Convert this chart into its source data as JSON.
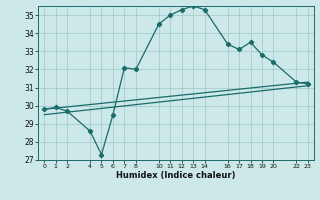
{
  "xlabel": "Humidex (Indice chaleur)",
  "bg_color": "#cce8e8",
  "grid_color": "#a0c8c8",
  "line_color": "#1a6b6b",
  "ylim": [
    27,
    35.5
  ],
  "xlim": [
    -0.5,
    23.5
  ],
  "yticks": [
    27,
    28,
    29,
    30,
    31,
    32,
    33,
    34,
    35
  ],
  "xticks": [
    0,
    1,
    2,
    4,
    5,
    6,
    7,
    8,
    10,
    11,
    12,
    13,
    14,
    16,
    17,
    18,
    19,
    20,
    22,
    23
  ],
  "line1_x": [
    0,
    1,
    2,
    4,
    5,
    6,
    7,
    8,
    10,
    11,
    12,
    13,
    14,
    16,
    17,
    18,
    19,
    20,
    22,
    23
  ],
  "line1_y": [
    29.8,
    29.9,
    29.7,
    28.6,
    27.3,
    29.5,
    32.1,
    32.0,
    34.5,
    35.0,
    35.3,
    35.5,
    35.3,
    33.4,
    33.1,
    33.5,
    32.8,
    32.4,
    31.3,
    31.2
  ],
  "line2_x": [
    0,
    23
  ],
  "line2_y": [
    29.5,
    31.1
  ],
  "line3_x": [
    0,
    23
  ],
  "line3_y": [
    29.8,
    31.3
  ],
  "marker_size": 2.2,
  "linewidth": 0.9
}
